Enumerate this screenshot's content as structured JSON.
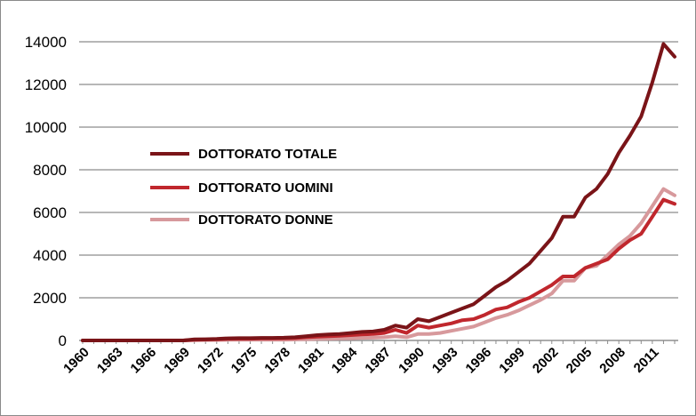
{
  "chart_data": {
    "type": "line",
    "title": "",
    "xlabel": "",
    "ylabel": "",
    "ylim": [
      0,
      14000
    ],
    "yticks": [
      0,
      2000,
      4000,
      6000,
      8000,
      10000,
      12000,
      14000
    ],
    "x_tick_labels": [
      "1960",
      "1963",
      "1966",
      "1969",
      "1972",
      "1975",
      "1978",
      "1981",
      "1984",
      "1987",
      "1990",
      "1993",
      "1996",
      "1999",
      "2002",
      "2005",
      "2008",
      "2011"
    ],
    "x": [
      1960,
      1961,
      1962,
      1963,
      1964,
      1965,
      1966,
      1967,
      1968,
      1969,
      1970,
      1971,
      1972,
      1973,
      1974,
      1975,
      1976,
      1977,
      1978,
      1979,
      1980,
      1981,
      1982,
      1983,
      1984,
      1985,
      1986,
      1987,
      1988,
      1989,
      1990,
      1991,
      1992,
      1993,
      1994,
      1995,
      1996,
      1997,
      1998,
      1999,
      2000,
      2001,
      2002,
      2003,
      2004,
      2005,
      2006,
      2007,
      2008,
      2009,
      2010,
      2011,
      2012,
      2013
    ],
    "grid": true,
    "legend_position": "center-left",
    "series": [
      {
        "name": "DOTTORATO TOTALE",
        "color": "#7a1418",
        "values": [
          0,
          0,
          0,
          0,
          0,
          0,
          0,
          0,
          0,
          0,
          50,
          60,
          70,
          100,
          110,
          110,
          120,
          120,
          130,
          150,
          200,
          250,
          280,
          300,
          350,
          400,
          420,
          500,
          700,
          600,
          1000,
          900,
          1100,
          1300,
          1500,
          1700,
          2100,
          2500,
          2800,
          3200,
          3600,
          4200,
          4800,
          5800,
          5800,
          6700,
          7100,
          7800,
          8800,
          9600,
          10500,
          12100,
          13900,
          13300
        ]
      },
      {
        "name": "DOTTORATO UOMINI",
        "color": "#c0272d",
        "values": [
          0,
          0,
          0,
          0,
          0,
          0,
          0,
          0,
          0,
          0,
          30,
          40,
          50,
          70,
          80,
          80,
          90,
          90,
          100,
          110,
          150,
          180,
          200,
          220,
          250,
          280,
          300,
          350,
          500,
          350,
          700,
          600,
          700,
          800,
          950,
          1000,
          1200,
          1450,
          1550,
          1800,
          2000,
          2300,
          2600,
          3000,
          3000,
          3400,
          3600,
          3800,
          4300,
          4700,
          5000,
          5800,
          6600,
          6400
        ]
      },
      {
        "name": "DOTTORATO DONNE",
        "color": "#d7999c",
        "values": [
          0,
          0,
          0,
          0,
          0,
          0,
          0,
          0,
          0,
          0,
          10,
          15,
          20,
          30,
          30,
          30,
          30,
          30,
          30,
          40,
          50,
          70,
          80,
          90,
          100,
          120,
          130,
          150,
          200,
          150,
          300,
          300,
          350,
          450,
          550,
          650,
          850,
          1050,
          1200,
          1400,
          1650,
          1900,
          2200,
          2800,
          2800,
          3400,
          3500,
          4000,
          4500,
          4900,
          5500,
          6300,
          7100,
          6800
        ]
      }
    ]
  }
}
